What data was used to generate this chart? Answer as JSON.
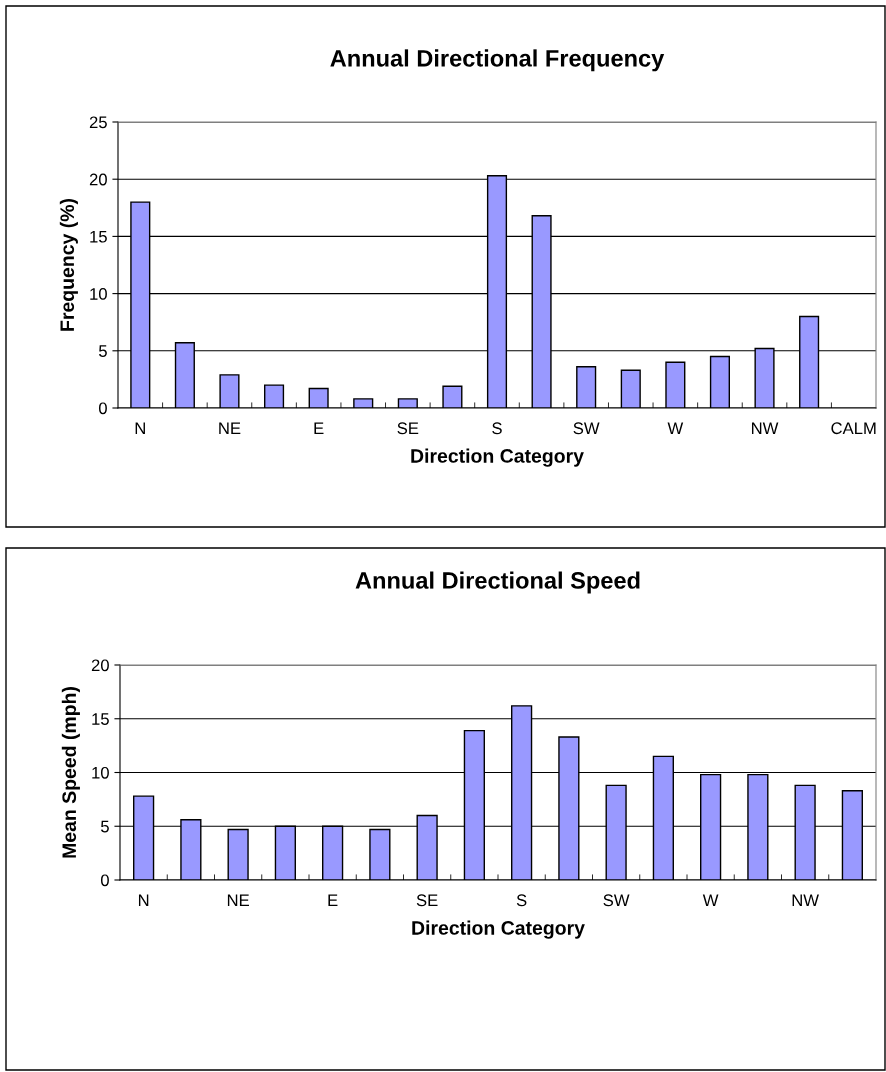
{
  "chart_data": [
    {
      "type": "bar",
      "title": "Annual Directional Frequency",
      "xlabel": "Direction Category",
      "ylabel": "Frequency (%)",
      "categories": [
        "N",
        null,
        "NE",
        null,
        "E",
        null,
        "SE",
        null,
        "S",
        null,
        "SW",
        null,
        "W",
        null,
        "NW",
        null,
        "CALM"
      ],
      "values": [
        18.0,
        5.7,
        2.9,
        2.0,
        1.7,
        0.8,
        0.8,
        1.9,
        20.3,
        16.8,
        3.6,
        3.3,
        4.0,
        4.5,
        5.2,
        8.0,
        null
      ],
      "color": "#9999ff",
      "ylim": [
        0,
        25
      ],
      "yticks": [
        0,
        5,
        10,
        15,
        20,
        25
      ],
      "grid": "y",
      "legend": false
    },
    {
      "type": "bar",
      "title": "Annual Directional Speed",
      "xlabel": "Direction Category",
      "ylabel": "Mean Speed (mph)",
      "categories": [
        "N",
        null,
        "NE",
        null,
        "E",
        null,
        "SE",
        null,
        "S",
        null,
        "SW",
        null,
        "W",
        null,
        "NW",
        null
      ],
      "values": [
        7.8,
        5.6,
        4.7,
        5.0,
        5.0,
        4.7,
        6.0,
        13.9,
        16.2,
        13.3,
        8.8,
        11.5,
        9.8,
        9.8,
        8.8,
        8.3
      ],
      "color": "#9999ff",
      "ylim": [
        0,
        20
      ],
      "yticks": [
        0,
        5,
        10,
        15,
        20
      ],
      "grid": "y",
      "legend": false
    }
  ]
}
